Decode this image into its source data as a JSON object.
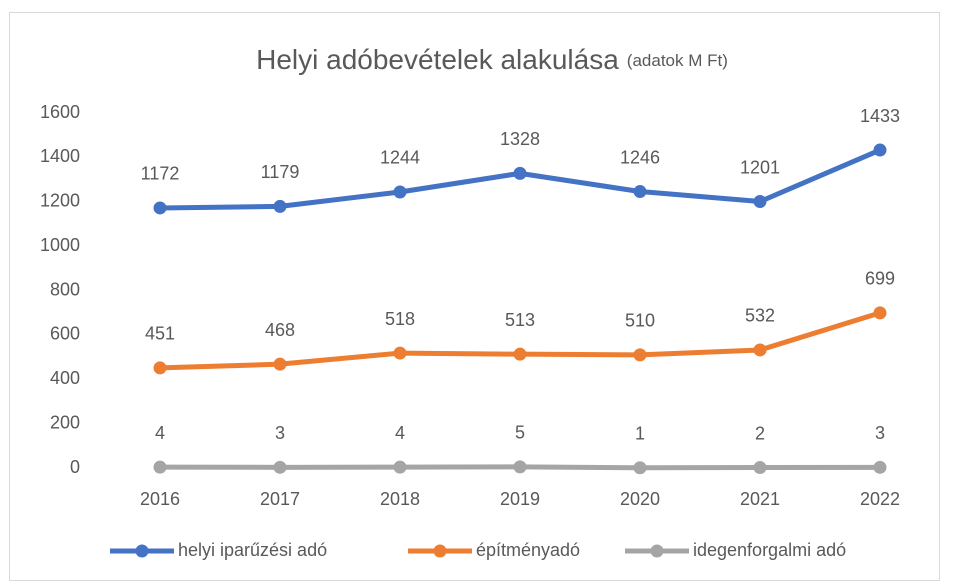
{
  "chart_data": {
    "type": "line",
    "title": "Helyi adóbevételek alakulása",
    "subtitle": "(adatok M Ft)",
    "categories": [
      "2016",
      "2017",
      "2018",
      "2019",
      "2020",
      "2021",
      "2022"
    ],
    "series": [
      {
        "name": "helyi iparűzési adó",
        "color": "#4472c4",
        "values": [
          1172,
          1179,
          1244,
          1328,
          1246,
          1201,
          1433
        ]
      },
      {
        "name": "építményadó",
        "color": "#ed7d31",
        "values": [
          451,
          468,
          518,
          513,
          510,
          532,
          699
        ]
      },
      {
        "name": "idegenforgalmi adó",
        "color": "#a5a5a5",
        "values": [
          4,
          3,
          4,
          5,
          1,
          2,
          3
        ]
      }
    ],
    "ylim": [
      0,
      1600
    ],
    "yticks": [
      0,
      200,
      400,
      600,
      800,
      1000,
      1200,
      1400,
      1600
    ],
    "grid": false,
    "legend": "bottom"
  }
}
